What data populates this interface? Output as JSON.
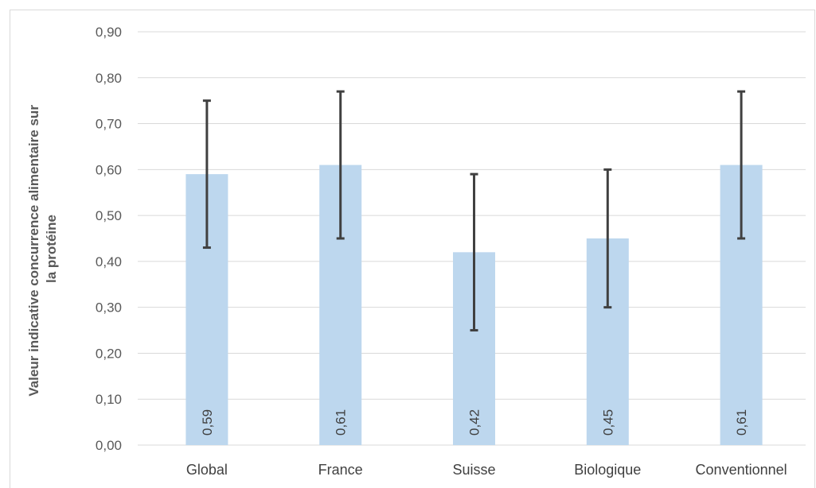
{
  "chart_data": {
    "type": "bar",
    "categories": [
      "Global",
      "France",
      "Suisse",
      "Biologique",
      "Conventionnel"
    ],
    "values": [
      0.59,
      0.61,
      0.42,
      0.45,
      0.61
    ],
    "value_labels": [
      "0,59",
      "0,61",
      "0,42",
      "0,45",
      "0,61"
    ],
    "error_high": [
      0.75,
      0.77,
      0.59,
      0.6,
      0.77
    ],
    "error_low": [
      0.43,
      0.45,
      0.25,
      0.3,
      0.45
    ],
    "ylabel_lines": [
      "Valeur indicative concurrence alimentaire sur",
      "la protéine"
    ],
    "ylim": [
      0,
      0.9
    ],
    "yticks": [
      "0,00",
      "0,10",
      "0,20",
      "0,30",
      "0,40",
      "0,50",
      "0,60",
      "0,70",
      "0,80",
      "0,90"
    ],
    "grid": true,
    "colors": {
      "bar": "#bdd7ee",
      "error": "#404040",
      "grid": "#d9d9d9"
    }
  }
}
